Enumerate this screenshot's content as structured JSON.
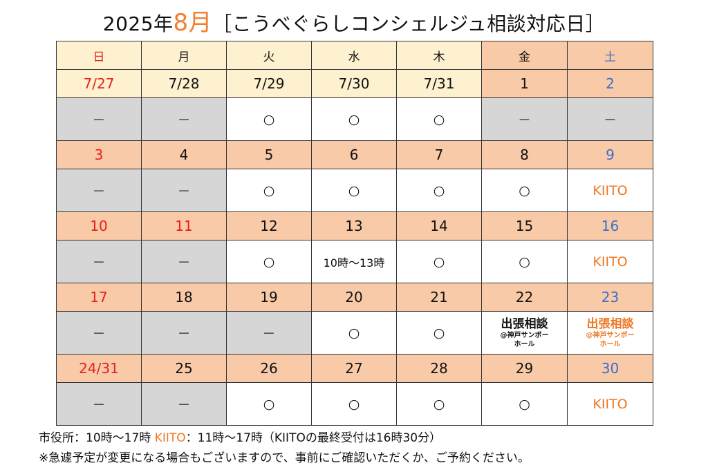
{
  "title": {
    "year": "2025年",
    "month": "8月",
    "subject": "［こうべぐらしコンシェルジュ相談対応日］"
  },
  "colors": {
    "header_weekday_bg": "#fdf1cf",
    "weekend_bg": "#f8caa8",
    "closed_bg": "#d6d6d6",
    "sunday_red": "#e8201c",
    "saturday_blue": "#3a6fc9",
    "kiito_orange": "#ee7722"
  },
  "weekdays": [
    "日",
    "月",
    "火",
    "水",
    "木",
    "金",
    "土"
  ],
  "weeks": [
    {
      "dates": [
        "7/27",
        "7/28",
        "7/29",
        "7/30",
        "7/31",
        "1",
        "2"
      ],
      "slots": [
        "－",
        "－",
        "○",
        "○",
        "○",
        "－",
        "－"
      ]
    },
    {
      "dates": [
        "3",
        "4",
        "5",
        "6",
        "7",
        "8",
        "9"
      ],
      "slots": [
        "－",
        "－",
        "○",
        "○",
        "○",
        "○",
        "KIITO"
      ]
    },
    {
      "dates": [
        "10",
        "11",
        "12",
        "13",
        "14",
        "15",
        "16"
      ],
      "slots": [
        "－",
        "－",
        "○",
        "10時～13時",
        "○",
        "○",
        "KIITO"
      ]
    },
    {
      "dates": [
        "17",
        "18",
        "19",
        "20",
        "21",
        "22",
        "23"
      ],
      "slots": [
        "－",
        "－",
        "－",
        "○",
        "○",
        "出張相談",
        "出張相談"
      ],
      "trip_sub": "@神戸サンボー",
      "trip_sub2": "ホール"
    },
    {
      "dates": [
        "24/31",
        "25",
        "26",
        "27",
        "28",
        "29",
        "30"
      ],
      "slots": [
        "－",
        "－",
        "○",
        "○",
        "○",
        "○",
        "KIITO"
      ]
    }
  ],
  "notes": {
    "line1_city": "市役所：10時～17時",
    "line1_kiito_label": "KIITO",
    "line1_kiito_hours": "：11時～17時（KIITOの最終受付は16時30分）",
    "line2": "※急遽予定が変更になる場合もございますので、事前にご確認いただくか、ご予約ください。"
  }
}
